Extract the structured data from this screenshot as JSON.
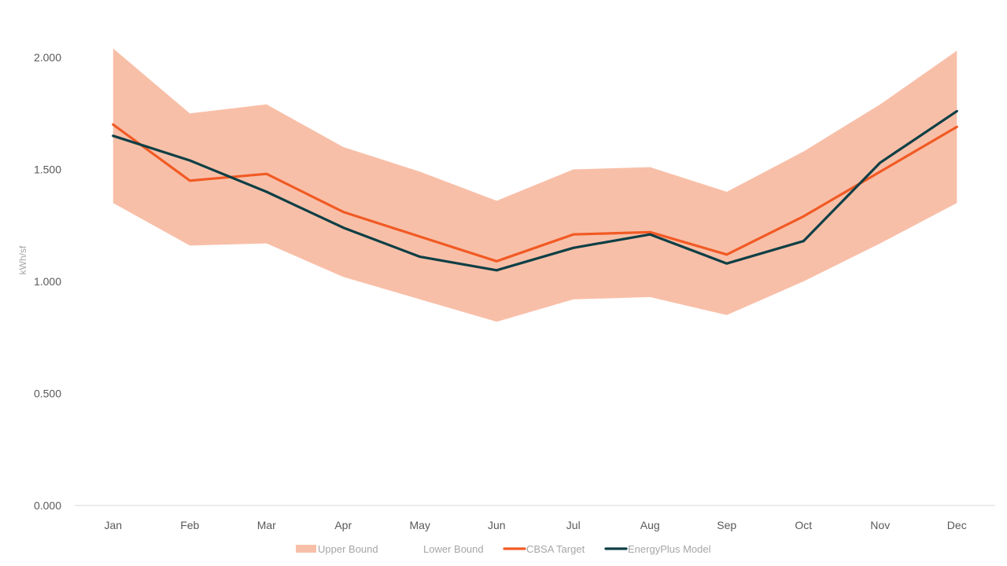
{
  "chart_data": {
    "type": "line",
    "ylabel": "kWh/sf",
    "ylim": [
      0,
      2.0
    ],
    "yticks": [
      "0.000",
      "0.500",
      "1.000",
      "1.500",
      "2.000"
    ],
    "ytick_values": [
      0,
      0.5,
      1.0,
      1.5,
      2.0
    ],
    "categories": [
      "Jan",
      "Feb",
      "Mar",
      "Apr",
      "May",
      "Jun",
      "Jul",
      "Aug",
      "Sep",
      "Oct",
      "Nov",
      "Dec"
    ],
    "grid": false,
    "legend_position": "bottom",
    "series": [
      {
        "name": "Upper Bound",
        "kind": "band-upper",
        "color": "#f8bfa8",
        "values": [
          2.04,
          1.75,
          1.79,
          1.6,
          1.49,
          1.36,
          1.5,
          1.51,
          1.4,
          1.58,
          1.79,
          2.03
        ]
      },
      {
        "name": "Lower Bound",
        "kind": "band-lower",
        "color": "#ffffff",
        "values": [
          1.35,
          1.16,
          1.17,
          1.02,
          0.92,
          0.82,
          0.92,
          0.93,
          0.85,
          1.0,
          1.17,
          1.35
        ]
      },
      {
        "name": "CBSA Target",
        "kind": "line",
        "color": "#f15a24",
        "values": [
          1.7,
          1.45,
          1.48,
          1.31,
          1.2,
          1.09,
          1.21,
          1.22,
          1.12,
          1.29,
          1.49,
          1.69
        ]
      },
      {
        "name": "EnergyPlus Model",
        "kind": "line",
        "color": "#0e3f45",
        "values": [
          1.65,
          1.54,
          1.4,
          1.24,
          1.11,
          1.05,
          1.15,
          1.21,
          1.08,
          1.18,
          1.53,
          1.76
        ]
      }
    ]
  }
}
